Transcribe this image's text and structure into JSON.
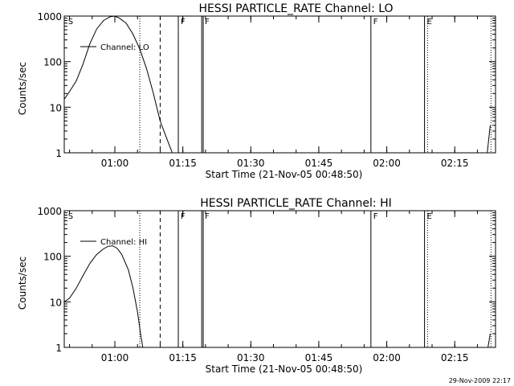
{
  "chart_data": [
    {
      "type": "line",
      "title": "HESSI PARTICLE_RATE Channel: LO",
      "xlabel": "Start Time (21-Nov-05 00:48:50)",
      "ylabel": "Counts/sec",
      "y_scale": "log",
      "ylim": [
        1,
        1000
      ],
      "xlim": [
        "00:48:50",
        "02:24:00"
      ],
      "x_ticks": [
        "01:00",
        "01:15",
        "01:30",
        "01:45",
        "02:00",
        "02:15"
      ],
      "y_ticks": [
        "1",
        "10",
        "100",
        "1000"
      ],
      "grid": false,
      "legend": {
        "position": "upper-left",
        "entries": [
          "Channel: LO"
        ]
      },
      "series": [
        {
          "name": "Channel: LO",
          "x": [
            "00:48:50",
            "00:50:00",
            "00:51:30",
            "00:53:00",
            "00:54:30",
            "00:56:00",
            "00:57:30",
            "00:59:00",
            "01:00:00",
            "01:01:00",
            "01:02:30",
            "01:04:00",
            "01:05:30",
            "01:07:00",
            "01:08:30",
            "01:10:00",
            "01:11:30",
            "01:12:40"
          ],
          "values": [
            15,
            22,
            38,
            90,
            250,
            520,
            800,
            970,
            1000,
            900,
            700,
            400,
            190,
            70,
            20,
            5,
            2,
            1
          ],
          "tail_x": [
            "02:22:10",
            "02:22:50"
          ],
          "tail_values": [
            1,
            4
          ]
        }
      ],
      "markers": {
        "dotted": [
          "01:05:30",
          "02:09:00",
          "02:23:00"
        ],
        "dashed": [
          "01:10:00"
        ],
        "solid": [
          "01:14:00",
          "01:19:10",
          "01:19:30",
          "01:56:30",
          "02:08:20"
        ]
      },
      "flags": [
        {
          "x": "00:49:30",
          "label": "S"
        },
        {
          "x": "01:14:20",
          "label": "F"
        },
        {
          "x": "01:19:40",
          "label": "F"
        },
        {
          "x": "01:56:50",
          "label": "F"
        },
        {
          "x": "02:08:40",
          "label": "E"
        }
      ]
    },
    {
      "type": "line",
      "title": "HESSI PARTICLE_RATE Channel: HI",
      "xlabel": "Start Time (21-Nov-05 00:48:50)",
      "ylabel": "Counts/sec",
      "y_scale": "log",
      "ylim": [
        1,
        1000
      ],
      "xlim": [
        "00:48:50",
        "02:24:00"
      ],
      "x_ticks": [
        "01:00",
        "01:15",
        "01:30",
        "01:45",
        "02:00",
        "02:15"
      ],
      "y_ticks": [
        "1",
        "10",
        "100",
        "1000"
      ],
      "grid": false,
      "legend": {
        "position": "upper-left",
        "entries": [
          "Channel: HI"
        ]
      },
      "series": [
        {
          "name": "Channel: HI",
          "x": [
            "00:48:50",
            "00:50:00",
            "00:51:30",
            "00:53:00",
            "00:54:30",
            "00:56:00",
            "00:57:30",
            "00:58:30",
            "00:59:30",
            "01:00:30",
            "01:01:30",
            "01:03:00",
            "01:04:00",
            "01:05:00",
            "01:05:40",
            "01:06:10"
          ],
          "values": [
            10,
            12,
            20,
            38,
            70,
            110,
            145,
            165,
            170,
            150,
            110,
            50,
            20,
            6,
            2,
            1
          ],
          "tail_x": [
            "02:22:20",
            "02:22:50"
          ],
          "tail_values": [
            1,
            2
          ]
        }
      ],
      "markers": {
        "dotted": [
          "01:05:30",
          "02:09:00",
          "02:23:00"
        ],
        "dashed": [
          "01:10:00"
        ],
        "solid": [
          "01:14:00",
          "01:19:10",
          "01:19:30",
          "01:56:30",
          "02:08:20"
        ]
      },
      "flags": [
        {
          "x": "00:49:30",
          "label": "S"
        },
        {
          "x": "01:14:20",
          "label": "F"
        },
        {
          "x": "01:19:40",
          "label": "F"
        },
        {
          "x": "01:56:50",
          "label": "F"
        },
        {
          "x": "02:08:40",
          "label": "E"
        }
      ]
    }
  ],
  "footer": {
    "timestamp": "29-Nov-2009 22:17"
  }
}
